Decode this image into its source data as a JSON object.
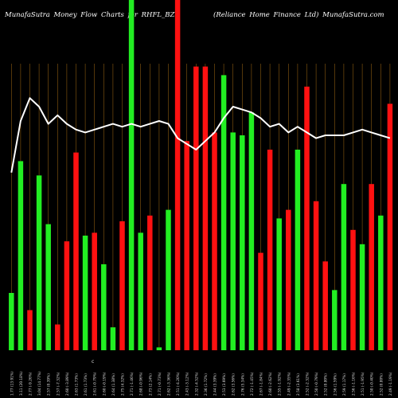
{
  "header": {
    "left_text": "MunafaSutra  Money  Flow  Charts for  RHFL_BZ",
    "right_text": "(Reliance    Home    Finance    Ltd)  MunafaSutra.com"
  },
  "colors": {
    "background": "#000000",
    "up_bar": "#22ee22",
    "down_bar": "#ff1111",
    "grid_line": "#8a5a10",
    "price_line": "#ffffff",
    "label_text": "#dddddd"
  },
  "chart_data": {
    "type": "bar",
    "title": "MunafaSutra  Money  Flow  Charts for  RHFL_BZ",
    "subtitle": "(Reliance    Home    Finance    Ltd)  MunafaSutra.com",
    "ylim": [
      0,
      100
    ],
    "grid": "vertical",
    "categories": [
      "1.77 (13.91%)",
      "3.11 (20.18%)",
      "2.77 (-9.26%)",
      "3.04 (14.77%)",
      "2.57 (0.39%)",
      "2.57 (-7.32%)",
      "2.60 (-3.89%)",
      "2.63 (1.73%)",
      "2.61 (1.73%)",
      "2.61 (-0.79%)",
      "2.60 (-0.19%)",
      "2.64 (1.38%)",
      "2.75 (4.32%)",
      "2.71 (-1.46%)",
      "2.68 (-0.96%)",
      "2.73 (2.14%)",
      "2.71 (-0.73%)",
      "2.62 (-3.36%)",
      "2.51 (-4.20%)",
      "2.43 (-3.12%)",
      "2.32 (-4.52%)",
      "2.36 (1.72%)",
      "2.44 (3.39%)",
      "2.53 (3.69%)",
      "2.62 (3.56%)",
      "2.76 (5.34%)",
      "2.72 (-1.45%)",
      "2.67 (-1.84%)",
      "2.60 (-2.62%)",
      "2.55 (-1.92%)",
      "2.49 (-2.35%)",
      "2.58 (3.61%)",
      "2.52 (-2.32%)",
      "2.50 (-0.79%)",
      "2.52 (0.80%)",
      "2.56 (1.59%)",
      "2.59 (1.17%)",
      "2.56 (-1.16%)",
      "2.51 (-1.95%)",
      "2.50 (-0.40%)",
      "2.52 (0.80%)",
      "2.49 (-1.19%)"
    ],
    "series": [
      {
        "bar_values": [
          20,
          66,
          14,
          61,
          44,
          9,
          38,
          69,
          40,
          41,
          30,
          8,
          45,
          35,
          41,
          47,
          1,
          49,
          87,
          73,
          99,
          99,
          76,
          96,
          76,
          75,
          83,
          34,
          70,
          46,
          49,
          70,
          92,
          52,
          31,
          21,
          58,
          42,
          37,
          58,
          47,
          86
        ],
        "bar_direction": [
          "up",
          "up",
          "down",
          "up",
          "up",
          "down",
          "down",
          "down",
          "up",
          "down",
          "up",
          "up",
          "down",
          "up",
          "up",
          "down",
          "up",
          "up",
          "down",
          "down",
          "down",
          "down",
          "down",
          "up",
          "up",
          "up",
          "up",
          "down",
          "down",
          "up",
          "down",
          "up",
          "down",
          "down",
          "down",
          "up",
          "up",
          "down",
          "up",
          "down",
          "up",
          "down"
        ],
        "full_height_up_bars": [
          13
        ],
        "full_height_down_bars": [
          17,
          18
        ],
        "price_line": [
          62,
          80,
          88,
          85,
          79,
          82,
          79,
          77,
          76,
          77,
          78,
          79,
          78,
          79,
          78,
          79,
          80,
          79,
          74,
          72,
          70,
          73,
          76,
          81,
          85,
          84,
          83,
          81,
          78,
          79,
          76,
          78,
          76,
          74,
          75,
          75,
          75,
          76,
          77,
          76,
          75,
          74
        ]
      }
    ]
  },
  "bottom_marker": "c"
}
